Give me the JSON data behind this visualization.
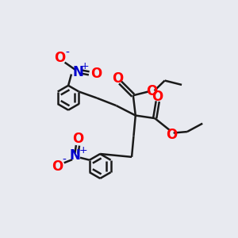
{
  "background_color": "#e8eaf0",
  "bond_color": "#1a1a1a",
  "oxygen_color": "#ff0000",
  "nitrogen_color": "#0000cc",
  "charge_color": "#0000cc",
  "fig_w": 3.0,
  "fig_h": 3.0,
  "dpi": 100,
  "xlim": [
    0,
    10
  ],
  "ylim": [
    0,
    10
  ]
}
